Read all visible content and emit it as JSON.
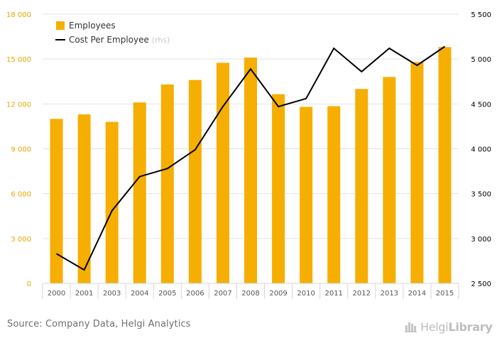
{
  "chart_data": {
    "type": "bar",
    "categories": [
      "2000",
      "2001",
      "2003",
      "2004",
      "2005",
      "2006",
      "2007",
      "2008",
      "2009",
      "2010",
      "2011",
      "2012",
      "2013",
      "2014",
      "2015"
    ],
    "series": [
      {
        "name": "Employees",
        "type": "bar",
        "axis": "left",
        "color": "#f6ae00",
        "values": [
          11000,
          11300,
          10800,
          12100,
          13300,
          13600,
          14750,
          15100,
          12650,
          11800,
          11850,
          13000,
          13800,
          14800,
          15800
        ]
      },
      {
        "name": "Cost Per Employee",
        "name_suffix": "(rhs)",
        "type": "line",
        "axis": "right",
        "color": "#000000",
        "values": [
          2830,
          2650,
          3310,
          3690,
          3780,
          3990,
          4470,
          4890,
          4470,
          4560,
          5120,
          4860,
          5120,
          4930,
          5140
        ]
      }
    ],
    "y_left": {
      "min": 0,
      "max": 18000,
      "ticks": [
        0,
        3000,
        6000,
        9000,
        12000,
        15000,
        18000
      ],
      "tick_labels": [
        "0",
        "3 000",
        "6 000",
        "9 000",
        "12 000",
        "15 000",
        "18 000"
      ],
      "color": "#e6a700"
    },
    "y_right": {
      "min": 2500,
      "max": 5500,
      "ticks": [
        2500,
        3000,
        3500,
        4000,
        4500,
        5000,
        5500
      ],
      "tick_labels": [
        "2 500",
        "3 000",
        "3 500",
        "4 000",
        "4 500",
        "5 000",
        "5 500"
      ],
      "color": "#000000"
    },
    "grid": true,
    "legend_position": "top-left",
    "title": "",
    "xlabel": "",
    "ylabel": ""
  },
  "footer": {
    "source": "Source: Company Data, Helgi Analytics",
    "brand_light": "Helgi",
    "brand_bold": "Library"
  },
  "colors": {
    "grid": "#e3e3e3",
    "axis_tick_text": "#555555",
    "legend_text": "#333333",
    "legend_muted": "#c9c9c9"
  },
  "icons": {
    "brand": "library-buildings-icon"
  }
}
